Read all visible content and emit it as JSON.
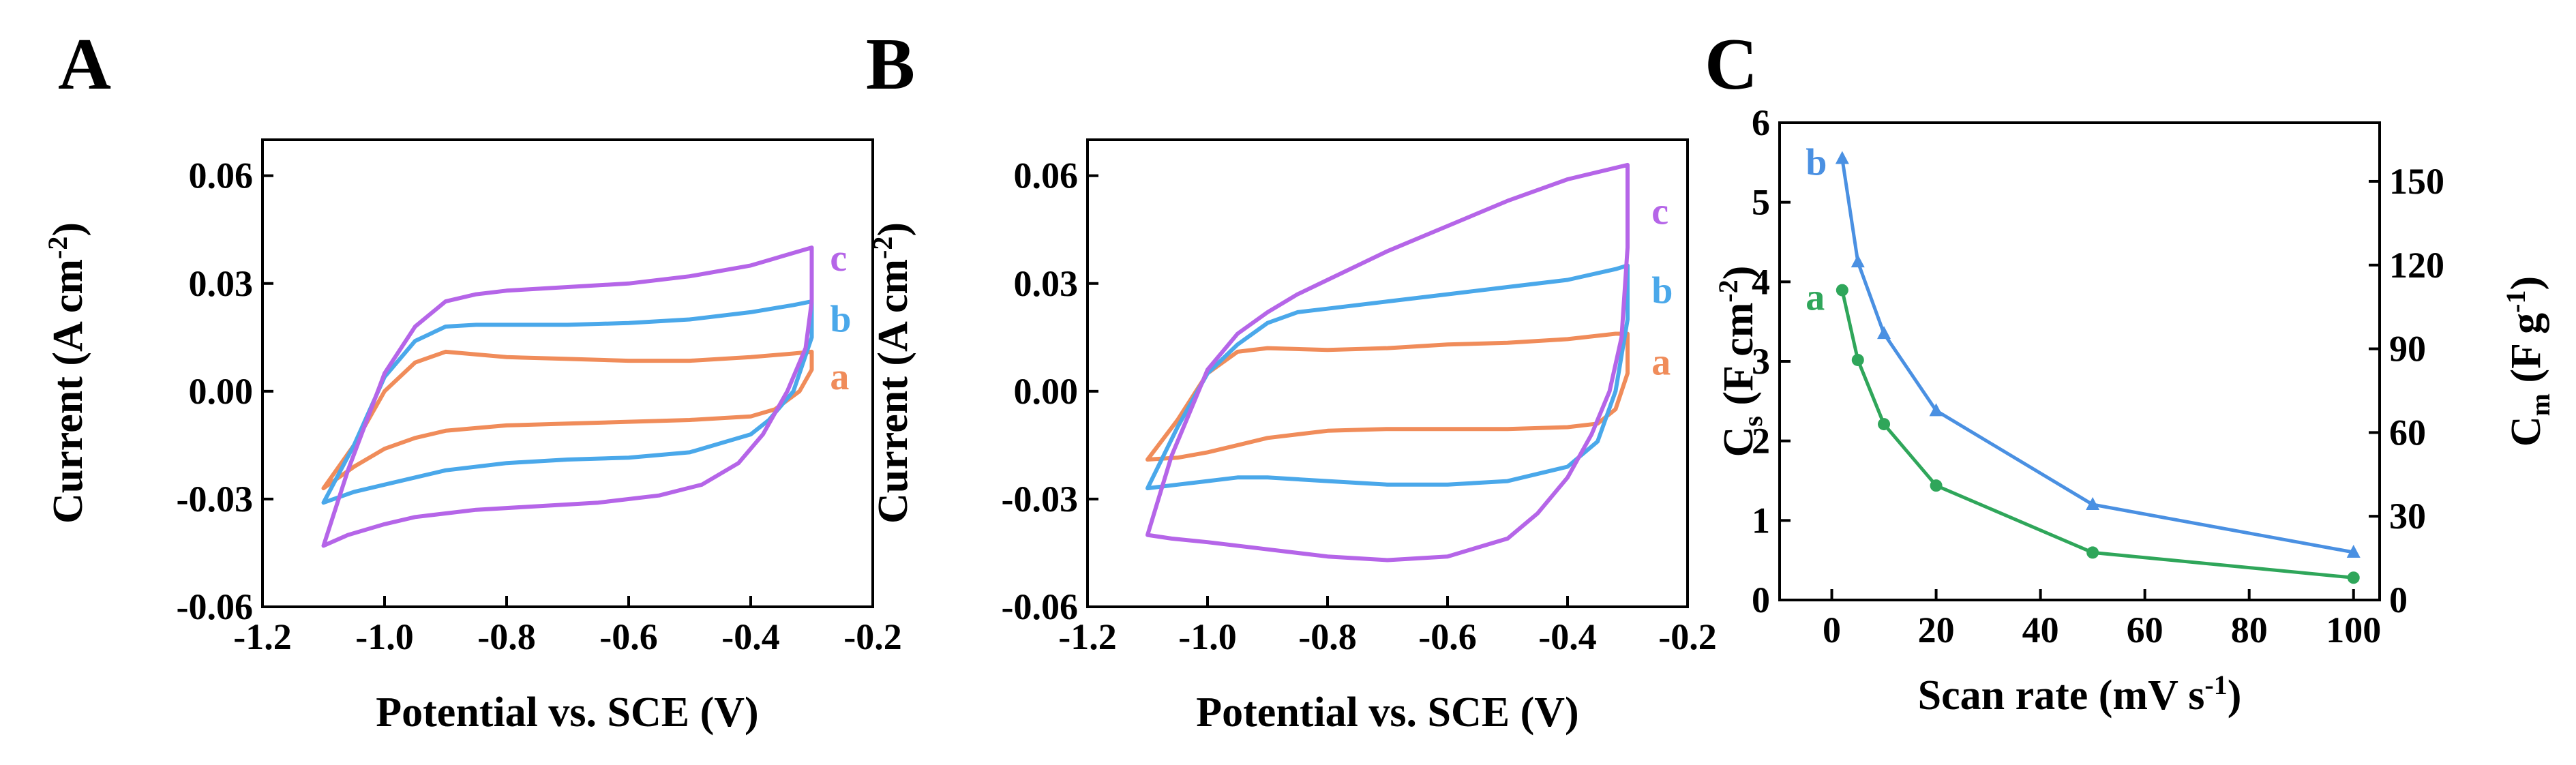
{
  "colors": {
    "a": "#f08c5a",
    "b": "#4aa8ea",
    "c": "#b565e8",
    "Cs": "#4a90e2",
    "Cm": "#2fa65a"
  },
  "chart_data": [
    {
      "panel": "A",
      "type": "line",
      "xlabel": "Potential vs. SCE (V)",
      "ylabel_main": "Current (A cm",
      "ylabel_sup": "-2",
      "ylabel_end": ")",
      "xlim": [
        -1.2,
        -0.2
      ],
      "ylim": [
        -0.06,
        0.07
      ],
      "xticks": [
        -1.2,
        -1.0,
        -0.8,
        -0.6,
        -0.4,
        -0.2
      ],
      "xtick_labels": [
        "-1.2",
        "-1.0",
        "-0.8",
        "-0.6",
        "-0.4",
        "-0.2"
      ],
      "yticks": [
        -0.06,
        -0.03,
        0.0,
        0.03,
        0.06
      ],
      "ytick_labels": [
        "-0.06",
        "-0.03",
        "0.00",
        "0.03",
        "0.06"
      ],
      "series": [
        {
          "name": "a",
          "label": "a",
          "label_pos": [
            -0.27,
            0.004
          ],
          "color": "#f08c5a",
          "x": [
            -1.1,
            -1.05,
            -1.0,
            -0.95,
            -0.9,
            -0.8,
            -0.7,
            -0.6,
            -0.5,
            -0.4,
            -0.33,
            -0.3,
            -0.3,
            -0.32,
            -0.36,
            -0.4,
            -0.5,
            -0.6,
            -0.7,
            -0.8,
            -0.9,
            -0.95,
            -1.0,
            -1.05,
            -1.1
          ],
          "y": [
            -0.027,
            -0.015,
            0.0,
            0.008,
            0.011,
            0.0095,
            0.009,
            0.0085,
            0.0085,
            0.0095,
            0.0105,
            0.011,
            0.006,
            0.0,
            -0.005,
            -0.007,
            -0.008,
            -0.0085,
            -0.009,
            -0.0095,
            -0.011,
            -0.013,
            -0.016,
            -0.021,
            -0.027
          ]
        },
        {
          "name": "b",
          "label": "b",
          "label_pos": [
            -0.27,
            0.02
          ],
          "color": "#4aa8ea",
          "x": [
            -1.1,
            -1.05,
            -1.0,
            -0.95,
            -0.9,
            -0.85,
            -0.8,
            -0.7,
            -0.6,
            -0.5,
            -0.4,
            -0.33,
            -0.3,
            -0.3,
            -0.33,
            -0.37,
            -0.4,
            -0.5,
            -0.6,
            -0.7,
            -0.8,
            -0.9,
            -0.95,
            -1.0,
            -1.05,
            -1.1
          ],
          "y": [
            -0.031,
            -0.015,
            0.004,
            0.014,
            0.018,
            0.0185,
            0.0185,
            0.0185,
            0.019,
            0.02,
            0.022,
            0.024,
            0.025,
            0.015,
            0.0,
            -0.008,
            -0.012,
            -0.017,
            -0.0185,
            -0.019,
            -0.02,
            -0.022,
            -0.024,
            -0.026,
            -0.028,
            -0.031
          ]
        },
        {
          "name": "c",
          "label": "c",
          "label_pos": [
            -0.27,
            0.037
          ],
          "color": "#b565e8",
          "x": [
            -1.1,
            -1.06,
            -1.0,
            -0.95,
            -0.9,
            -0.85,
            -0.8,
            -0.7,
            -0.6,
            -0.5,
            -0.4,
            -0.3,
            -0.3,
            -0.31,
            -0.34,
            -0.38,
            -0.42,
            -0.48,
            -0.55,
            -0.65,
            -0.75,
            -0.85,
            -0.95,
            -1.0,
            -1.06,
            -1.1
          ],
          "y": [
            -0.043,
            -0.022,
            0.005,
            0.018,
            0.025,
            0.027,
            0.028,
            0.029,
            0.03,
            0.032,
            0.035,
            0.04,
            0.025,
            0.012,
            0.0,
            -0.012,
            -0.02,
            -0.026,
            -0.029,
            -0.031,
            -0.032,
            -0.033,
            -0.035,
            -0.037,
            -0.04,
            -0.043
          ]
        }
      ]
    },
    {
      "panel": "B",
      "type": "line",
      "xlabel": "Potential vs. SCE (V)",
      "ylabel_main": "Current (A cm",
      "ylabel_sup": "-2",
      "ylabel_end": ")",
      "xlim": [
        -1.2,
        -0.2
      ],
      "ylim": [
        -0.06,
        0.07
      ],
      "xticks": [
        -1.2,
        -1.0,
        -0.8,
        -0.6,
        -0.4,
        -0.2
      ],
      "xtick_labels": [
        "-1.2",
        "-1.0",
        "-0.8",
        "-0.6",
        "-0.4",
        "-0.2"
      ],
      "yticks": [
        -0.06,
        -0.03,
        0.0,
        0.03,
        0.06
      ],
      "ytick_labels": [
        "-0.06",
        "-0.03",
        "0.00",
        "0.03",
        "0.06"
      ],
      "series": [
        {
          "name": "a",
          "label": "a",
          "label_pos": [
            -0.26,
            0.008
          ],
          "color": "#f08c5a",
          "x": [
            -1.1,
            -1.05,
            -1.0,
            -0.95,
            -0.9,
            -0.8,
            -0.7,
            -0.6,
            -0.5,
            -0.4,
            -0.32,
            -0.3,
            -0.3,
            -0.32,
            -0.35,
            -0.4,
            -0.5,
            -0.6,
            -0.7,
            -0.8,
            -0.9,
            -0.95,
            -1.0,
            -1.05,
            -1.1
          ],
          "y": [
            -0.019,
            -0.008,
            0.005,
            0.011,
            0.012,
            0.0115,
            0.012,
            0.013,
            0.0135,
            0.0145,
            0.016,
            0.016,
            0.005,
            -0.005,
            -0.009,
            -0.01,
            -0.0105,
            -0.0105,
            -0.0105,
            -0.011,
            -0.013,
            -0.015,
            -0.017,
            -0.0185,
            -0.019
          ]
        },
        {
          "name": "b",
          "label": "b",
          "label_pos": [
            -0.26,
            0.028
          ],
          "color": "#4aa8ea",
          "x": [
            -1.1,
            -1.05,
            -1.0,
            -0.95,
            -0.9,
            -0.85,
            -0.8,
            -0.7,
            -0.6,
            -0.5,
            -0.4,
            -0.32,
            -0.3,
            -0.3,
            -0.32,
            -0.35,
            -0.4,
            -0.5,
            -0.6,
            -0.7,
            -0.8,
            -0.9,
            -0.95,
            -1.0,
            -1.05,
            -1.1
          ],
          "y": [
            -0.027,
            -0.01,
            0.005,
            0.013,
            0.019,
            0.022,
            0.023,
            0.025,
            0.027,
            0.029,
            0.031,
            0.034,
            0.035,
            0.02,
            0.0,
            -0.014,
            -0.021,
            -0.025,
            -0.026,
            -0.026,
            -0.025,
            -0.024,
            -0.024,
            -0.025,
            -0.026,
            -0.027
          ]
        },
        {
          "name": "c",
          "label": "c",
          "label_pos": [
            -0.26,
            0.05
          ],
          "color": "#b565e8",
          "x": [
            -1.1,
            -1.06,
            -1.0,
            -0.95,
            -0.9,
            -0.85,
            -0.8,
            -0.7,
            -0.6,
            -0.5,
            -0.4,
            -0.3,
            -0.3,
            -0.31,
            -0.33,
            -0.36,
            -0.4,
            -0.45,
            -0.5,
            -0.6,
            -0.7,
            -0.8,
            -0.9,
            -1.0,
            -1.06,
            -1.1
          ],
          "y": [
            -0.04,
            -0.018,
            0.006,
            0.016,
            0.022,
            0.027,
            0.031,
            0.039,
            0.046,
            0.053,
            0.059,
            0.063,
            0.04,
            0.015,
            0.0,
            -0.012,
            -0.024,
            -0.034,
            -0.041,
            -0.046,
            -0.047,
            -0.046,
            -0.044,
            -0.042,
            -0.041,
            -0.04
          ]
        }
      ]
    },
    {
      "panel": "C",
      "type": "line",
      "xlabel": "Scan rate (mV s",
      "xlabel_sup": "-1",
      "xlabel_end": ")",
      "ylabel_left_main": "C",
      "ylabel_left_sub": "s",
      "ylabel_left_rest": " (F cm",
      "ylabel_left_sup": "-2",
      "ylabel_left_end": ")",
      "ylabel_right_main": "C",
      "ylabel_right_sub": "m",
      "ylabel_right_rest": " (F g",
      "ylabel_right_sup": "-1",
      "ylabel_right_end": ")",
      "xlim": [
        -10,
        105
      ],
      "ylim_left": [
        0,
        6
      ],
      "ylim_right": [
        0,
        171
      ],
      "xticks": [
        0,
        20,
        40,
        60,
        80,
        100
      ],
      "xtick_labels": [
        "0",
        "20",
        "40",
        "60",
        "80",
        "100"
      ],
      "yticks_left": [
        0,
        1,
        2,
        3,
        4,
        5,
        6
      ],
      "ytick_labels_left": [
        "0",
        "1",
        "2",
        "3",
        "4",
        "5",
        "6"
      ],
      "yticks_right": [
        0,
        30,
        60,
        90,
        120,
        150
      ],
      "ytick_labels_right": [
        "0",
        "30",
        "60",
        "90",
        "120",
        "150"
      ],
      "series": [
        {
          "name": "b",
          "label": "b",
          "axis": "left",
          "color": "#4a90e2",
          "marker": "triangle",
          "x": [
            2,
            5,
            10,
            20,
            50,
            100
          ],
          "y": [
            5.55,
            4.25,
            3.35,
            2.38,
            1.2,
            0.6
          ]
        },
        {
          "name": "a",
          "label": "a",
          "axis": "right",
          "color": "#2fa65a",
          "marker": "circle",
          "x": [
            2,
            5,
            10,
            20,
            50,
            100
          ],
          "y": [
            111,
            86,
            63,
            41,
            17,
            8
          ]
        }
      ],
      "labels": [
        {
          "text": "b",
          "x": -5,
          "y": 5.5,
          "color": "#4a90e2"
        },
        {
          "text": "a",
          "x": -5,
          "y": 3.8,
          "color": "#2fa65a"
        }
      ]
    }
  ]
}
